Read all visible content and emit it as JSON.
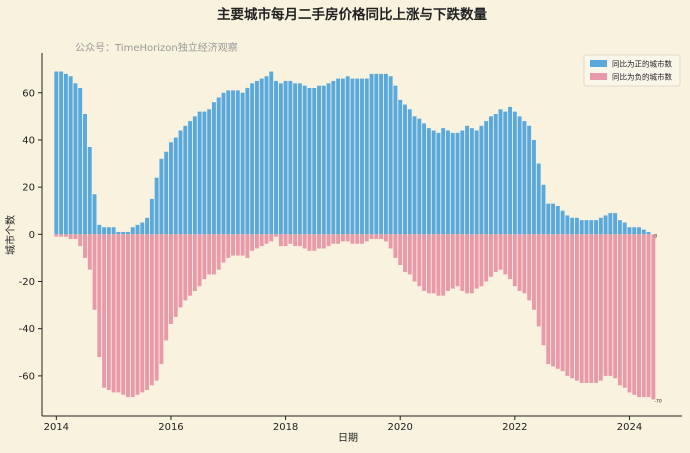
{
  "colors": {
    "background": "#f9f2df",
    "positive": "#5aa9dd",
    "negative": "#e89aaa",
    "axis": "#222222",
    "source_text": "#999999"
  },
  "chart_data": {
    "type": "bar",
    "title": "主要城市每月二手房价格同比上涨与下跌数量",
    "source_note": "公众号：TimeHorizon独立经济观察",
    "xlabel": "日期",
    "ylabel": "城市个数",
    "x_ticks": [
      "2014",
      "2016",
      "2018",
      "2020",
      "2022",
      "2024"
    ],
    "y_ticks": [
      -60,
      -40,
      -20,
      0,
      20,
      40,
      60
    ],
    "ylim": [
      -77,
      76
    ],
    "xlim": [
      "2013-10",
      "2024-12"
    ],
    "legend_position": "top-right",
    "annotations": [
      {
        "text": "0",
        "x": "2024-06",
        "y": 0
      },
      {
        "text": "-70",
        "x": "2024-06",
        "y": -70
      }
    ],
    "x": [
      "2014-01",
      "2014-02",
      "2014-03",
      "2014-04",
      "2014-05",
      "2014-06",
      "2014-07",
      "2014-08",
      "2014-09",
      "2014-10",
      "2014-11",
      "2014-12",
      "2015-01",
      "2015-02",
      "2015-03",
      "2015-04",
      "2015-05",
      "2015-06",
      "2015-07",
      "2015-08",
      "2015-09",
      "2015-10",
      "2015-11",
      "2015-12",
      "2016-01",
      "2016-02",
      "2016-03",
      "2016-04",
      "2016-05",
      "2016-06",
      "2016-07",
      "2016-08",
      "2016-09",
      "2016-10",
      "2016-11",
      "2016-12",
      "2017-01",
      "2017-02",
      "2017-03",
      "2017-04",
      "2017-05",
      "2017-06",
      "2017-07",
      "2017-08",
      "2017-09",
      "2017-10",
      "2017-11",
      "2017-12",
      "2018-01",
      "2018-02",
      "2018-03",
      "2018-04",
      "2018-05",
      "2018-06",
      "2018-07",
      "2018-08",
      "2018-09",
      "2018-10",
      "2018-11",
      "2018-12",
      "2019-01",
      "2019-02",
      "2019-03",
      "2019-04",
      "2019-05",
      "2019-06",
      "2019-07",
      "2019-08",
      "2019-09",
      "2019-10",
      "2019-11",
      "2019-12",
      "2020-01",
      "2020-02",
      "2020-03",
      "2020-04",
      "2020-05",
      "2020-06",
      "2020-07",
      "2020-08",
      "2020-09",
      "2020-10",
      "2020-11",
      "2020-12",
      "2021-01",
      "2021-02",
      "2021-03",
      "2021-04",
      "2021-05",
      "2021-06",
      "2021-07",
      "2021-08",
      "2021-09",
      "2021-10",
      "2021-11",
      "2021-12",
      "2022-01",
      "2022-02",
      "2022-03",
      "2022-04",
      "2022-05",
      "2022-06",
      "2022-07",
      "2022-08",
      "2022-09",
      "2022-10",
      "2022-11",
      "2022-12",
      "2023-01",
      "2023-02",
      "2023-03",
      "2023-04",
      "2023-05",
      "2023-06",
      "2023-07",
      "2023-08",
      "2023-09",
      "2023-10",
      "2023-11",
      "2023-12",
      "2024-01",
      "2024-02",
      "2024-03",
      "2024-04",
      "2024-05",
      "2024-06"
    ],
    "series": [
      {
        "name": "同比为正的城市数",
        "color": "#5aa9dd",
        "values": [
          69,
          69,
          68,
          67,
          64,
          62,
          51,
          37,
          17,
          4,
          3,
          3,
          3,
          1,
          1,
          1,
          3,
          4,
          5,
          7,
          15,
          24,
          32,
          35,
          39,
          41,
          44,
          46,
          48,
          50,
          52,
          52,
          53,
          56,
          58,
          60,
          61,
          61,
          61,
          60,
          62,
          64,
          65,
          66,
          67,
          69,
          65,
          64,
          65,
          65,
          64,
          64,
          63,
          62,
          62,
          63,
          63,
          64,
          65,
          66,
          66,
          67,
          66,
          66,
          66,
          66,
          68,
          68,
          68,
          68,
          67,
          63,
          57,
          55,
          53,
          50,
          49,
          47,
          45,
          44,
          43,
          45,
          44,
          43,
          43,
          44,
          46,
          45,
          44,
          46,
          48,
          50,
          51,
          53,
          52,
          54,
          52,
          50,
          48,
          46,
          40,
          30,
          21,
          13,
          13,
          12,
          10,
          8,
          7,
          7,
          6,
          6,
          6,
          6,
          7,
          8,
          9,
          9,
          6,
          5,
          3,
          3,
          3,
          2,
          1,
          0
        ]
      },
      {
        "name": "同比为负的城市数",
        "color": "#e89aaa",
        "values": [
          -1,
          -1,
          -1,
          -2,
          -2,
          -5,
          -10,
          -15,
          -32,
          -52,
          -65,
          -66,
          -67,
          -67,
          -68,
          -69,
          -69,
          -68,
          -67,
          -66,
          -64,
          -62,
          -55,
          -45,
          -38,
          -35,
          -31,
          -28,
          -26,
          -24,
          -22,
          -19,
          -17,
          -17,
          -15,
          -12,
          -10,
          -9,
          -9,
          -9,
          -10,
          -7,
          -6,
          -5,
          -4,
          -3,
          -1,
          -5,
          -5,
          -4,
          -5,
          -5,
          -6,
          -7,
          -7,
          -6,
          -6,
          -5,
          -4,
          -4,
          -3,
          -3,
          -4,
          -4,
          -4,
          -3,
          -2,
          -2,
          -2,
          -3,
          -6,
          -10,
          -13,
          -16,
          -17,
          -20,
          -22,
          -24,
          -25,
          -25,
          -26,
          -26,
          -24,
          -23,
          -22,
          -24,
          -25,
          -25,
          -23,
          -22,
          -20,
          -18,
          -16,
          -15,
          -17,
          -19,
          -22,
          -24,
          -25,
          -28,
          -32,
          -39,
          -47,
          -55,
          -56,
          -57,
          -58,
          -60,
          -61,
          -62,
          -63,
          -63,
          -63,
          -63,
          -62,
          -60,
          -60,
          -61,
          -64,
          -65,
          -67,
          -68,
          -69,
          -69,
          -69,
          -70
        ]
      }
    ]
  }
}
